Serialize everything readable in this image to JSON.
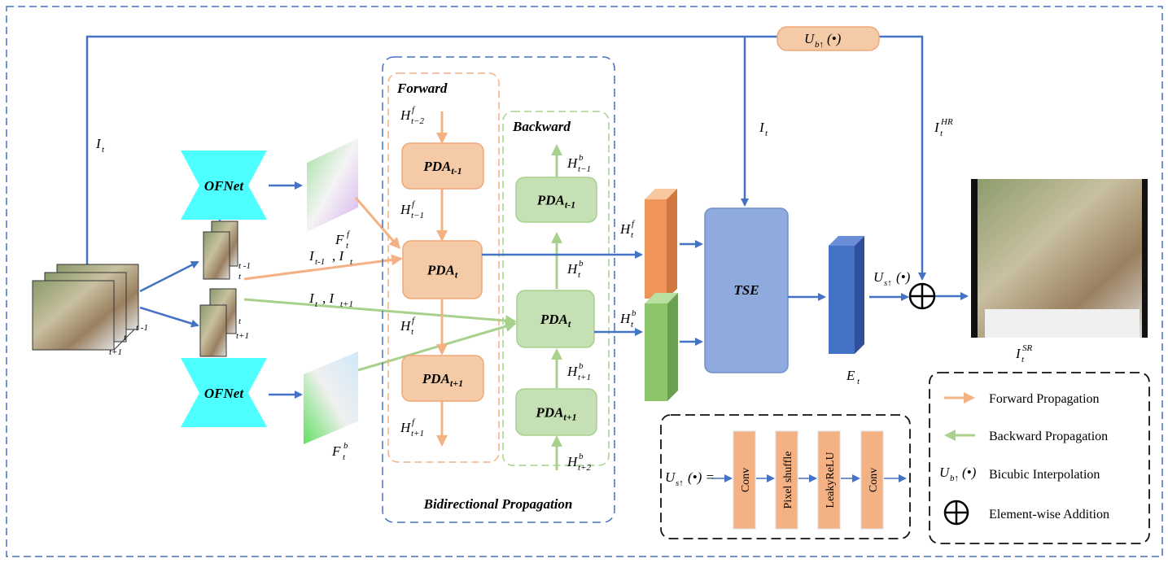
{
  "colors": {
    "blue": "#4472C4",
    "orange_fill": "#F5CBA7",
    "orange_stroke": "#F0A878",
    "green_fill": "#C5E0B4",
    "green_stroke": "#A9D18E",
    "ofnet": "#4DFFFF",
    "tse": "#8FAADC",
    "conv": "#F4B183"
  },
  "groups": {
    "forward": "Forward",
    "backward": "Backward",
    "bidirectional": "Bidirectional Propagation"
  },
  "blocks": {
    "ofnet_top": "OFNet",
    "ofnet_bottom": "OFNet",
    "tse": "TSE",
    "fwd_pda": [
      {
        "base": "PDA",
        "sub": "t-1"
      },
      {
        "base": "PDA",
        "sub": "t"
      },
      {
        "base": "PDA",
        "sub": "t+1"
      }
    ],
    "bwd_pda": [
      {
        "base": "PDA",
        "sub": "t-1"
      },
      {
        "base": "PDA",
        "sub": "t"
      },
      {
        "base": "PDA",
        "sub": "t+1"
      }
    ]
  },
  "frame_labels": {
    "input": [
      "t -1",
      "t",
      "t+1"
    ],
    "pair_top": [
      "t -1",
      "t"
    ],
    "pair_bottom": [
      "t",
      "t+1"
    ]
  },
  "math_labels": [
    {
      "id": "it_left",
      "base": "I",
      "sub": "t",
      "sup": ""
    },
    {
      "id": "it_mid",
      "base": "I",
      "sub": "t",
      "sup": ""
    },
    {
      "id": "ithr",
      "base": "I",
      "sub": "t",
      "sup": "HR"
    },
    {
      "id": "ub_box",
      "base": "U",
      "sub": "b↑",
      "sup": "",
      "tail": "(•)"
    },
    {
      "id": "fff",
      "base": "F",
      "sub": "t",
      "sup": "f"
    },
    {
      "id": "ffb",
      "base": "F",
      "sub": "t",
      "sup": "b"
    },
    {
      "id": "pair1",
      "base": "I",
      "sub": "t-1",
      "sup": "",
      "tail": " , I",
      "tailsub": "t"
    },
    {
      "id": "pair2",
      "base": "I",
      "sub": "t",
      "sup": "",
      "tail": " , I",
      "tailsub": "t+1"
    },
    {
      "id": "hf_tm2",
      "base": "H",
      "sub": "t−2",
      "sup": "f"
    },
    {
      "id": "hf_tm1",
      "base": "H",
      "sub": "t−1",
      "sup": "f"
    },
    {
      "id": "hf_t",
      "base": "H",
      "sub": "t",
      "sup": "f"
    },
    {
      "id": "hf_tp1",
      "base": "H",
      "sub": "t+1",
      "sup": "f"
    },
    {
      "id": "hb_tm1",
      "base": "H",
      "sub": "t−1",
      "sup": "b"
    },
    {
      "id": "hb_t",
      "base": "H",
      "sub": "t",
      "sup": "b"
    },
    {
      "id": "hb_tp1",
      "base": "H",
      "sub": "t+1",
      "sup": "b"
    },
    {
      "id": "hb_tp2",
      "base": "H",
      "sub": "t+2",
      "sup": "b"
    },
    {
      "id": "htf_out",
      "base": "H",
      "sub": "t",
      "sup": "f"
    },
    {
      "id": "htb_out",
      "base": "H",
      "sub": "t",
      "sup": "b"
    },
    {
      "id": "et",
      "base": "E",
      "sub": "t",
      "sup": ""
    },
    {
      "id": "us",
      "base": "U",
      "sub": "s↑",
      "sup": "",
      "tail": "(•)"
    },
    {
      "id": "itsr",
      "base": "I",
      "sub": "t",
      "sup": "SR"
    },
    {
      "id": "us_def",
      "base": "U",
      "sub": "s↑",
      "sup": "",
      "tail": "(•) ="
    },
    {
      "id": "ub_leg",
      "base": "U",
      "sub": "b↑",
      "sup": "",
      "tail": "(•)"
    }
  ],
  "upsampler": {
    "layers": [
      "Conv",
      "Pixel shuffle",
      "LeakyReLU",
      "Conv"
    ]
  },
  "legend": {
    "items": [
      {
        "label": "Forward Propagation",
        "icon": "orange-arrow"
      },
      {
        "label": "Backward Propagation",
        "icon": "green-arrow"
      },
      {
        "label": "Bicubic Interpolation",
        "icon": "bicubic-symbol"
      },
      {
        "label": "Element-wise Addition",
        "icon": "circle-plus"
      }
    ]
  }
}
